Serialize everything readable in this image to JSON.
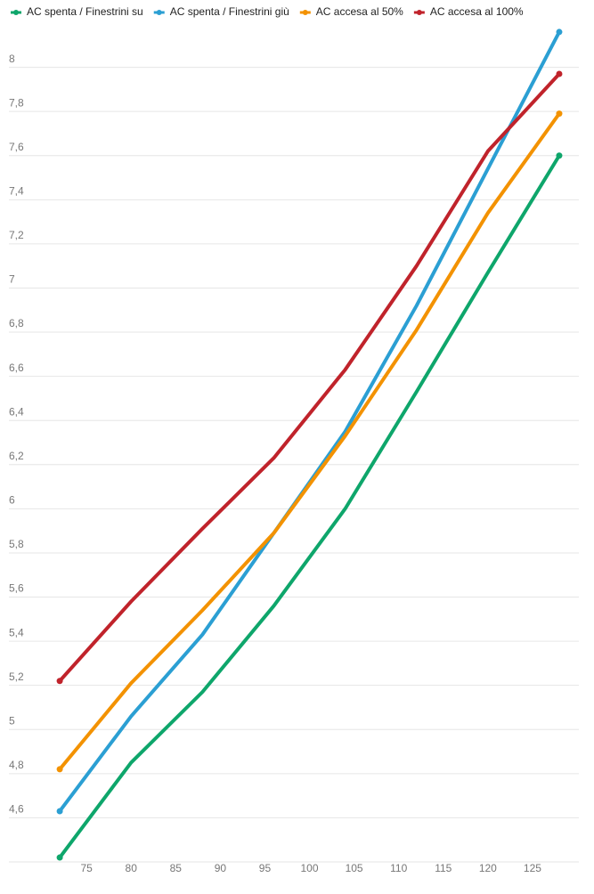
{
  "chart_data": {
    "type": "line",
    "x": [
      72,
      80,
      88,
      96,
      104,
      112,
      120,
      128
    ],
    "series": [
      {
        "name": "AC spenta / Finestrini su",
        "color": "#0ea66b",
        "values": [
          4.42,
          4.85,
          5.17,
          5.56,
          6.0,
          6.53,
          7.07,
          7.6
        ]
      },
      {
        "name": "AC spenta / Finestrini giù",
        "color": "#2b9fd3",
        "values": [
          4.63,
          5.06,
          5.43,
          5.89,
          6.35,
          6.92,
          7.54,
          8.16
        ]
      },
      {
        "name": "AC accesa al 50%",
        "color": "#f39200",
        "values": [
          4.82,
          5.21,
          5.54,
          5.89,
          6.33,
          6.81,
          7.34,
          7.79
        ]
      },
      {
        "name": "AC accesa al 100%",
        "color": "#c0232b",
        "values": [
          5.22,
          5.58,
          5.91,
          6.23,
          6.63,
          7.1,
          7.62,
          7.97
        ]
      }
    ],
    "xlim": [
      66.3,
      130.2
    ],
    "xticks": [
      75,
      80,
      85,
      90,
      95,
      100,
      105,
      110,
      115,
      120,
      125
    ],
    "ylim": [
      4.4,
      8.2
    ],
    "yticks": [
      {
        "value": 4.6,
        "label": "4,6"
      },
      {
        "value": 4.8,
        "label": "4,8"
      },
      5,
      {
        "value": 5.2,
        "label": "5,2"
      },
      {
        "value": 5.4,
        "label": "5,4"
      },
      {
        "value": 5.6,
        "label": "5,6"
      },
      {
        "value": 5.8,
        "label": "5,8"
      },
      6,
      {
        "value": 6.2,
        "label": "6,2"
      },
      {
        "value": 6.4,
        "label": "6,4"
      },
      {
        "value": 6.6,
        "label": "6,6"
      },
      {
        "value": 6.8,
        "label": "6,8"
      },
      7,
      {
        "value": 7.2,
        "label": "7,2"
      },
      {
        "value": 7.4,
        "label": "7,4"
      },
      {
        "value": 7.6,
        "label": "7,6"
      },
      {
        "value": 7.8,
        "label": "7,8"
      },
      8
    ],
    "grid": true,
    "legend": "top"
  }
}
